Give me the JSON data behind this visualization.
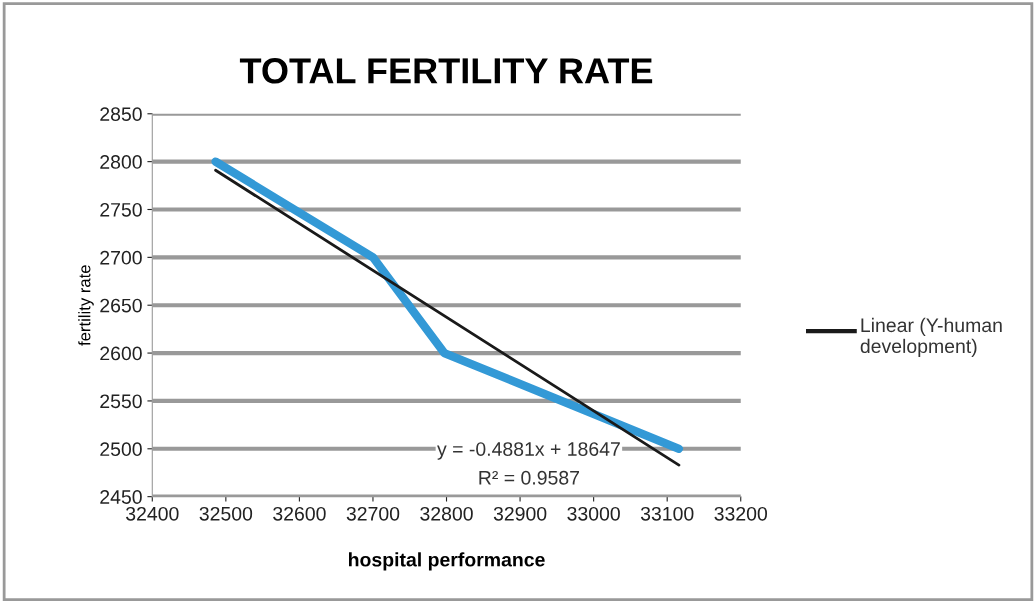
{
  "chart_data": {
    "type": "line",
    "title": "TOTAL FERTILITY RATE",
    "xlabel": "hospital performance",
    "ylabel": "fertility rate",
    "series": [
      {
        "color": "#3399d6",
        "x": [
          32486,
          32700,
          32797,
          33116
        ],
        "values": [
          2800,
          2700,
          2600,
          2500
        ]
      },
      {
        "name": "Linear (Y-human development)",
        "color": "#1a1a1a",
        "x": [
          32486,
          33116
        ],
        "values": [
          2791,
          2483
        ]
      }
    ],
    "xlim": [
      32400,
      33200
    ],
    "xticks": [
      32400,
      32500,
      32600,
      32700,
      32800,
      32900,
      33000,
      33100,
      33200
    ],
    "ylim": [
      2450,
      2850
    ],
    "yticks": [
      2450,
      2500,
      2550,
      2600,
      2650,
      2700,
      2750,
      2800,
      2850
    ],
    "grid": "y",
    "legend": "right",
    "marker": "none",
    "line_style": "solid",
    "annotations": [
      "y = -0.4881x + 18647",
      "R² = 0.9587"
    ]
  }
}
